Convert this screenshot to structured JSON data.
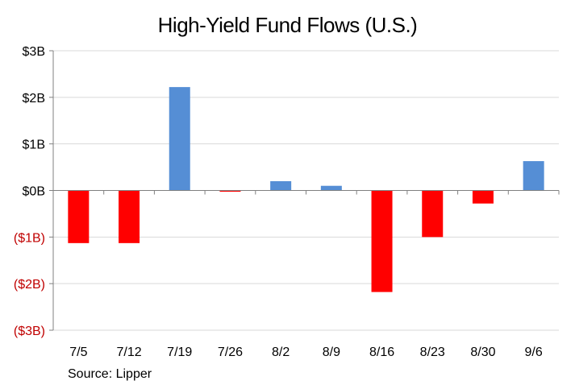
{
  "chart_data": {
    "type": "bar",
    "title": "High-Yield  Fund Flows (U.S.)",
    "source": "Source: Lipper",
    "categories": [
      "7/5",
      "7/12",
      "7/19",
      "7/26",
      "8/2",
      "8/9",
      "8/16",
      "8/23",
      "8/30",
      "9/6"
    ],
    "values": [
      -1.13,
      -1.13,
      2.22,
      -0.02,
      0.2,
      0.1,
      -2.18,
      -1.0,
      -0.28,
      0.63
    ],
    "ylim": [
      -3,
      3
    ],
    "yticks": [
      {
        "value": 3,
        "label": "$3B"
      },
      {
        "value": 2,
        "label": "$2B"
      },
      {
        "value": 1,
        "label": "$1B"
      },
      {
        "value": 0,
        "label": "$0B"
      },
      {
        "value": -1,
        "label": "($1B)"
      },
      {
        "value": -2,
        "label": "($2B)"
      },
      {
        "value": -3,
        "label": "($3B)"
      }
    ],
    "grid": true,
    "legend": "none",
    "colors": {
      "positive": "#558ED5",
      "negative": "#FF0000",
      "negative_label": "#C00000",
      "grid": "#D9D9D9",
      "axis": "#808080"
    }
  }
}
